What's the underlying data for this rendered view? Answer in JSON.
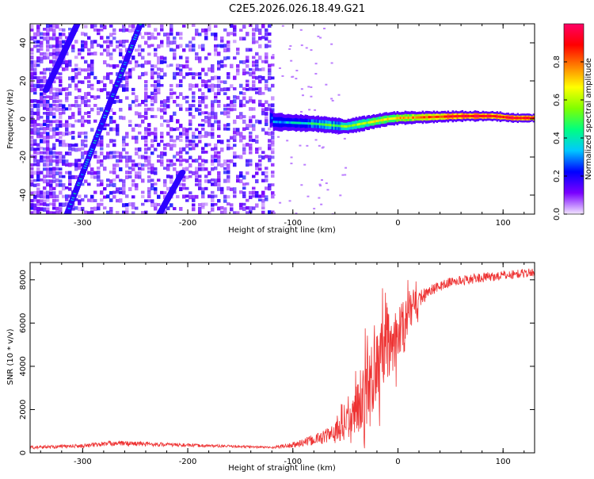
{
  "page": {
    "title": "C2E5.2026.026.18.49.G21"
  },
  "chart_data": [
    {
      "type": "heatmap",
      "xlabel": "Height of straight line (km)",
      "ylabel": "Frequency (Hz)",
      "xlim": [
        -350,
        130
      ],
      "ylim": [
        -50,
        50
      ],
      "xticks": [
        -300,
        -200,
        -100,
        0,
        100
      ],
      "yticks": [
        -40,
        -20,
        0,
        20,
        40
      ],
      "colorbar": {
        "label": "Normalized spectral amplitude",
        "ticks": [
          0.0,
          0.2,
          0.4,
          0.6,
          0.8
        ],
        "tick_labels": [
          "0.0",
          "0.2",
          "0.4",
          "0.6",
          "0.8"
        ],
        "colors": [
          "#f2e6ff",
          "#7a00ff",
          "#0000ff",
          "#00c8ff",
          "#00ff80",
          "#80ff00",
          "#ffff00",
          "#ff8000",
          "#ff0000",
          "#ff0066"
        ]
      },
      "features": {
        "noise_region_x": [
          -350,
          -120
        ],
        "tone_track": [
          [
            -120,
            -1.5
          ],
          [
            -80,
            -2.5
          ],
          [
            -50,
            -4
          ],
          [
            -30,
            -2
          ],
          [
            -10,
            0
          ],
          [
            0,
            0.5
          ],
          [
            30,
            1
          ],
          [
            60,
            1.5
          ],
          [
            90,
            1.5
          ],
          [
            100,
            1
          ],
          [
            110,
            0.5
          ],
          [
            130,
            0.5
          ]
        ],
        "diagonal_lines": [
          {
            "from": [
              -315,
              -50
            ],
            "to": [
              -245,
              50
            ]
          },
          {
            "from": [
              -335,
              15
            ],
            "to": [
              -305,
              50
            ]
          },
          {
            "from": [
              -227,
              -50
            ],
            "to": [
              -205,
              -28
            ]
          }
        ]
      }
    },
    {
      "type": "line",
      "xlabel": "Height of straight line (km)",
      "ylabel": "SNR (10 * v/v)",
      "xlim": [
        -350,
        130
      ],
      "ylim": [
        0,
        8800
      ],
      "xticks": [
        -300,
        -200,
        -100,
        0,
        100
      ],
      "yticks": [
        0,
        2000,
        4000,
        6000,
        8000
      ],
      "line_color": "#ee3333",
      "series_envelope": [
        {
          "x": -350,
          "mean": 250,
          "spread": 150
        },
        {
          "x": -300,
          "mean": 320,
          "spread": 180
        },
        {
          "x": -270,
          "mean": 450,
          "spread": 250
        },
        {
          "x": -200,
          "mean": 350,
          "spread": 150
        },
        {
          "x": -120,
          "mean": 250,
          "spread": 100
        },
        {
          "x": -100,
          "mean": 350,
          "spread": 300
        },
        {
          "x": -80,
          "mean": 600,
          "spread": 500
        },
        {
          "x": -60,
          "mean": 900,
          "spread": 900
        },
        {
          "x": -45,
          "mean": 1500,
          "spread": 1600
        },
        {
          "x": -30,
          "mean": 2800,
          "spread": 3200
        },
        {
          "x": -15,
          "mean": 4500,
          "spread": 3600
        },
        {
          "x": 0,
          "mean": 5500,
          "spread": 2600
        },
        {
          "x": 15,
          "mean": 6900,
          "spread": 1200
        },
        {
          "x": 30,
          "mean": 7500,
          "spread": 500
        },
        {
          "x": 50,
          "mean": 7900,
          "spread": 450
        },
        {
          "x": 80,
          "mean": 8100,
          "spread": 450
        },
        {
          "x": 100,
          "mean": 8200,
          "spread": 450
        },
        {
          "x": 130,
          "mean": 8350,
          "spread": 400
        }
      ]
    }
  ]
}
